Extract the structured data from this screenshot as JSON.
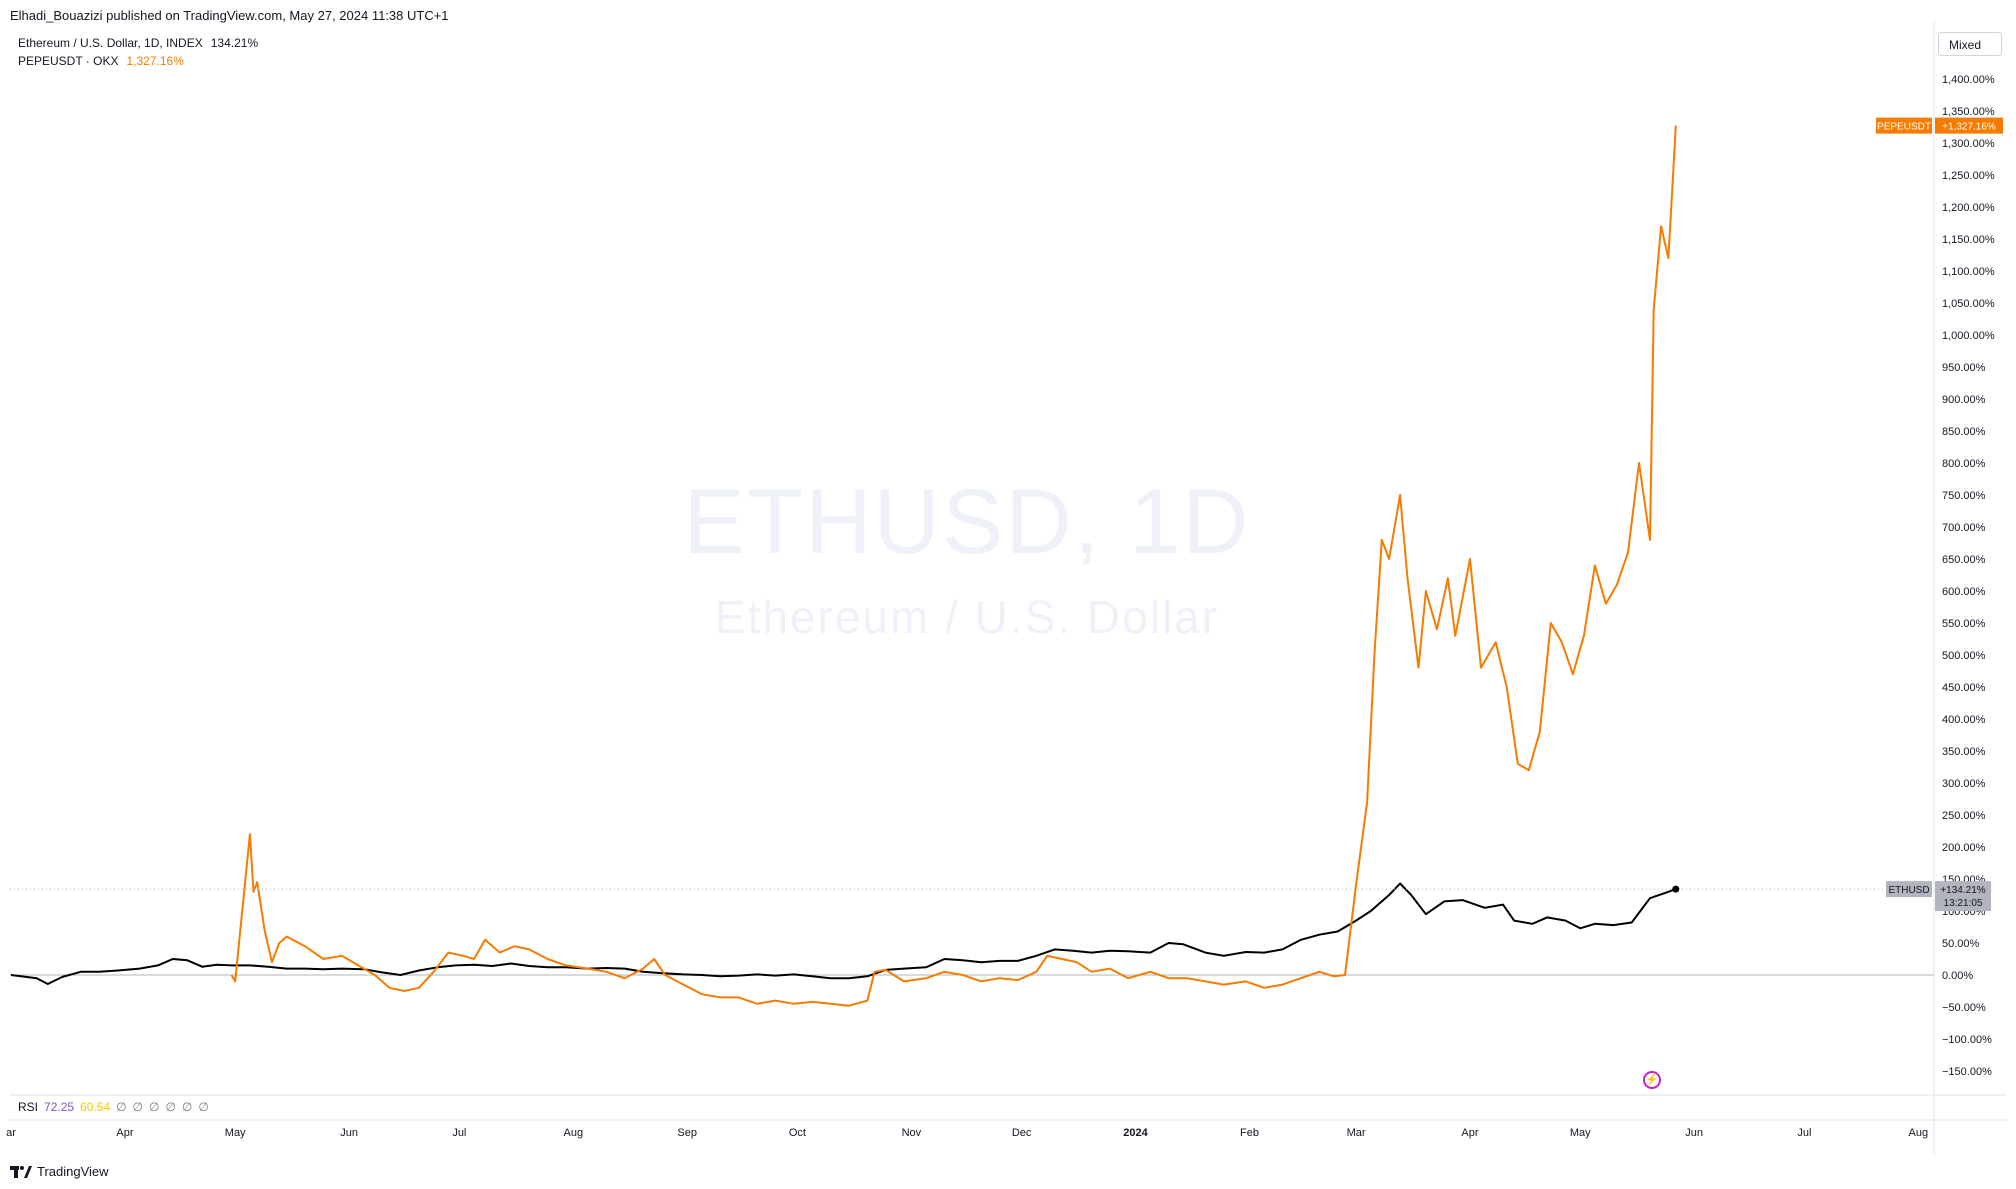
{
  "header": {
    "published": "Elhadi_Bouazizi published on TradingView.com, May 27, 2024 11:38 UTC+1"
  },
  "legend": {
    "eth_name": "Ethereum / U.S. Dollar, 1D, INDEX",
    "eth_value": "134.21%",
    "pepe_name": "PEPEUSDT · OKX",
    "pepe_value": "1,327.16%"
  },
  "scale_mode": "Mixed",
  "watermark": {
    "symbol": "ETHUSD, 1D",
    "name": "Ethereum / U.S. Dollar"
  },
  "rsi": {
    "label": "RSI",
    "value1": "72.25",
    "value2": "60.54",
    "empty_symbol": "∅"
  },
  "footer": {
    "brand": "TradingView"
  },
  "colors": {
    "eth": "#000000",
    "pepe": "#f57c00",
    "rsi1": "#7e57c2",
    "rsi2": "#f7c500",
    "axis_text": "#131722",
    "grid": "#e0e3eb"
  },
  "chart_data": {
    "type": "line",
    "y_unit": "%",
    "ylim": [
      -175,
      1425
    ],
    "y_ticks": [
      -150,
      -100,
      -50,
      0,
      50,
      100,
      150,
      200,
      250,
      300,
      350,
      400,
      450,
      500,
      550,
      600,
      650,
      700,
      750,
      800,
      850,
      900,
      950,
      1000,
      1050,
      1100,
      1150,
      1200,
      1250,
      1300,
      1350,
      1400
    ],
    "y_tick_labels": [
      "−150.00%",
      "−100.00%",
      "−50.00%",
      "0.00%",
      "50.00%",
      "100.00%",
      "150.00%",
      "200.00%",
      "250.00%",
      "300.00%",
      "350.00%",
      "400.00%",
      "450.00%",
      "500.00%",
      "550.00%",
      "600.00%",
      "650.00%",
      "700.00%",
      "750.00%",
      "800.00%",
      "850.00%",
      "900.00%",
      "950.00%",
      "1,000.00%",
      "1,050.00%",
      "1,100.00%",
      "1,150.00%",
      "1,200.00%",
      "1,250.00%",
      "1,300.00%",
      "1,350.00%",
      "1,400.00%"
    ],
    "x_range": [
      "2023-03-01",
      "2024-08-31"
    ],
    "x_ticks": [
      {
        "label": "ar",
        "date": "2023-03-01"
      },
      {
        "label": "Apr",
        "date": "2023-04-01"
      },
      {
        "label": "May",
        "date": "2023-05-01"
      },
      {
        "label": "Jun",
        "date": "2023-06-01"
      },
      {
        "label": "Jul",
        "date": "2023-07-01"
      },
      {
        "label": "Aug",
        "date": "2023-08-01"
      },
      {
        "label": "Sep",
        "date": "2023-09-01"
      },
      {
        "label": "Oct",
        "date": "2023-10-01"
      },
      {
        "label": "Nov",
        "date": "2023-11-01"
      },
      {
        "label": "Dec",
        "date": "2023-12-01"
      },
      {
        "label": "2024",
        "date": "2024-01-01",
        "bold": true
      },
      {
        "label": "Feb",
        "date": "2024-02-01"
      },
      {
        "label": "Mar",
        "date": "2024-03-01"
      },
      {
        "label": "Apr",
        "date": "2024-04-01"
      },
      {
        "label": "May",
        "date": "2024-05-01"
      },
      {
        "label": "Jun",
        "date": "2024-06-01"
      },
      {
        "label": "Jul",
        "date": "2024-07-01"
      },
      {
        "label": "Aug",
        "date": "2024-08-01"
      }
    ],
    "series": [
      {
        "name": "ETHUSD",
        "color": "#000000",
        "last_label": "+134.21%",
        "countdown": "13:21:05",
        "points": [
          [
            "2023-03-01",
            0
          ],
          [
            "2023-03-08",
            -5
          ],
          [
            "2023-03-11",
            -14
          ],
          [
            "2023-03-15",
            -3
          ],
          [
            "2023-03-20",
            5
          ],
          [
            "2023-03-25",
            5
          ],
          [
            "2023-03-30",
            7
          ],
          [
            "2023-04-05",
            10
          ],
          [
            "2023-04-10",
            15
          ],
          [
            "2023-04-14",
            25
          ],
          [
            "2023-04-18",
            23
          ],
          [
            "2023-04-22",
            13
          ],
          [
            "2023-04-26",
            16
          ],
          [
            "2023-04-30",
            15
          ],
          [
            "2023-05-05",
            15
          ],
          [
            "2023-05-10",
            13
          ],
          [
            "2023-05-15",
            10
          ],
          [
            "2023-05-20",
            10
          ],
          [
            "2023-05-25",
            9
          ],
          [
            "2023-05-30",
            10
          ],
          [
            "2023-06-05",
            9
          ],
          [
            "2023-06-10",
            4
          ],
          [
            "2023-06-15",
            0
          ],
          [
            "2023-06-20",
            7
          ],
          [
            "2023-06-25",
            12
          ],
          [
            "2023-06-30",
            15
          ],
          [
            "2023-07-05",
            16
          ],
          [
            "2023-07-10",
            14
          ],
          [
            "2023-07-15",
            18
          ],
          [
            "2023-07-20",
            14
          ],
          [
            "2023-07-25",
            12
          ],
          [
            "2023-07-30",
            12
          ],
          [
            "2023-08-05",
            10
          ],
          [
            "2023-08-10",
            11
          ],
          [
            "2023-08-15",
            10
          ],
          [
            "2023-08-20",
            5
          ],
          [
            "2023-08-25",
            3
          ],
          [
            "2023-08-31",
            1
          ],
          [
            "2023-09-05",
            0
          ],
          [
            "2023-09-10",
            -2
          ],
          [
            "2023-09-15",
            -1
          ],
          [
            "2023-09-20",
            1
          ],
          [
            "2023-09-25",
            -1
          ],
          [
            "2023-09-30",
            1
          ],
          [
            "2023-10-05",
            -2
          ],
          [
            "2023-10-10",
            -5
          ],
          [
            "2023-10-15",
            -5
          ],
          [
            "2023-10-20",
            -2
          ],
          [
            "2023-10-25",
            8
          ],
          [
            "2023-10-30",
            10
          ],
          [
            "2023-11-05",
            12
          ],
          [
            "2023-11-10",
            25
          ],
          [
            "2023-11-15",
            23
          ],
          [
            "2023-11-20",
            20
          ],
          [
            "2023-11-25",
            22
          ],
          [
            "2023-11-30",
            22
          ],
          [
            "2023-12-05",
            30
          ],
          [
            "2023-12-10",
            40
          ],
          [
            "2023-12-15",
            38
          ],
          [
            "2023-12-20",
            35
          ],
          [
            "2023-12-25",
            38
          ],
          [
            "2023-12-30",
            37
          ],
          [
            "2024-01-05",
            35
          ],
          [
            "2024-01-10",
            50
          ],
          [
            "2024-01-14",
            48
          ],
          [
            "2024-01-20",
            35
          ],
          [
            "2024-01-25",
            30
          ],
          [
            "2024-01-31",
            36
          ],
          [
            "2024-02-05",
            35
          ],
          [
            "2024-02-10",
            40
          ],
          [
            "2024-02-15",
            55
          ],
          [
            "2024-02-20",
            63
          ],
          [
            "2024-02-25",
            68
          ],
          [
            "2024-03-01",
            85
          ],
          [
            "2024-03-05",
            100
          ],
          [
            "2024-03-10",
            125
          ],
          [
            "2024-03-13",
            143
          ],
          [
            "2024-03-16",
            125
          ],
          [
            "2024-03-20",
            95
          ],
          [
            "2024-03-25",
            115
          ],
          [
            "2024-03-30",
            117
          ],
          [
            "2024-04-05",
            105
          ],
          [
            "2024-04-10",
            110
          ],
          [
            "2024-04-13",
            85
          ],
          [
            "2024-04-18",
            80
          ],
          [
            "2024-04-22",
            90
          ],
          [
            "2024-04-27",
            85
          ],
          [
            "2024-05-01",
            73
          ],
          [
            "2024-05-05",
            80
          ],
          [
            "2024-05-10",
            78
          ],
          [
            "2024-05-15",
            82
          ],
          [
            "2024-05-20",
            120
          ],
          [
            "2024-05-25",
            130
          ],
          [
            "2024-05-27",
            134.21
          ]
        ]
      },
      {
        "name": "PEPEUSDT",
        "color": "#f57c00",
        "last_label": "+1,327.16%",
        "points": [
          [
            "2023-04-30",
            0
          ],
          [
            "2023-05-01",
            -10
          ],
          [
            "2023-05-05",
            220
          ],
          [
            "2023-05-06",
            130
          ],
          [
            "2023-05-07",
            145
          ],
          [
            "2023-05-09",
            70
          ],
          [
            "2023-05-11",
            20
          ],
          [
            "2023-05-13",
            50
          ],
          [
            "2023-05-15",
            60
          ],
          [
            "2023-05-20",
            45
          ],
          [
            "2023-05-25",
            25
          ],
          [
            "2023-05-30",
            30
          ],
          [
            "2023-06-05",
            10
          ],
          [
            "2023-06-08",
            0
          ],
          [
            "2023-06-12",
            -20
          ],
          [
            "2023-06-16",
            -25
          ],
          [
            "2023-06-20",
            -20
          ],
          [
            "2023-06-24",
            5
          ],
          [
            "2023-06-28",
            35
          ],
          [
            "2023-07-02",
            30
          ],
          [
            "2023-07-05",
            25
          ],
          [
            "2023-07-08",
            55
          ],
          [
            "2023-07-12",
            35
          ],
          [
            "2023-07-16",
            45
          ],
          [
            "2023-07-20",
            40
          ],
          [
            "2023-07-25",
            25
          ],
          [
            "2023-07-30",
            15
          ],
          [
            "2023-08-05",
            10
          ],
          [
            "2023-08-10",
            5
          ],
          [
            "2023-08-15",
            -5
          ],
          [
            "2023-08-20",
            10
          ],
          [
            "2023-08-23",
            25
          ],
          [
            "2023-08-26",
            0
          ],
          [
            "2023-08-31",
            -15
          ],
          [
            "2023-09-05",
            -30
          ],
          [
            "2023-09-10",
            -35
          ],
          [
            "2023-09-15",
            -35
          ],
          [
            "2023-09-20",
            -45
          ],
          [
            "2023-09-25",
            -40
          ],
          [
            "2023-09-30",
            -45
          ],
          [
            "2023-10-05",
            -42
          ],
          [
            "2023-10-10",
            -45
          ],
          [
            "2023-10-15",
            -48
          ],
          [
            "2023-10-20",
            -40
          ],
          [
            "2023-10-22",
            5
          ],
          [
            "2023-10-25",
            8
          ],
          [
            "2023-10-30",
            -10
          ],
          [
            "2023-11-05",
            -5
          ],
          [
            "2023-11-10",
            5
          ],
          [
            "2023-11-15",
            0
          ],
          [
            "2023-11-20",
            -10
          ],
          [
            "2023-11-25",
            -5
          ],
          [
            "2023-11-30",
            -8
          ],
          [
            "2023-12-05",
            5
          ],
          [
            "2023-12-08",
            30
          ],
          [
            "2023-12-12",
            25
          ],
          [
            "2023-12-16",
            20
          ],
          [
            "2023-12-20",
            5
          ],
          [
            "2023-12-25",
            10
          ],
          [
            "2023-12-30",
            -5
          ],
          [
            "2024-01-05",
            5
          ],
          [
            "2024-01-10",
            -5
          ],
          [
            "2024-01-15",
            -5
          ],
          [
            "2024-01-20",
            -10
          ],
          [
            "2024-01-25",
            -15
          ],
          [
            "2024-01-31",
            -10
          ],
          [
            "2024-02-05",
            -20
          ],
          [
            "2024-02-10",
            -15
          ],
          [
            "2024-02-15",
            -5
          ],
          [
            "2024-02-20",
            5
          ],
          [
            "2024-02-24",
            -2
          ],
          [
            "2024-02-27",
            0
          ],
          [
            "2024-03-01",
            140
          ],
          [
            "2024-03-04",
            270
          ],
          [
            "2024-03-06",
            500
          ],
          [
            "2024-03-08",
            680
          ],
          [
            "2024-03-10",
            650
          ],
          [
            "2024-03-13",
            750
          ],
          [
            "2024-03-15",
            620
          ],
          [
            "2024-03-18",
            480
          ],
          [
            "2024-03-20",
            600
          ],
          [
            "2024-03-23",
            540
          ],
          [
            "2024-03-26",
            620
          ],
          [
            "2024-03-28",
            530
          ],
          [
            "2024-04-01",
            650
          ],
          [
            "2024-04-04",
            480
          ],
          [
            "2024-04-08",
            520
          ],
          [
            "2024-04-11",
            450
          ],
          [
            "2024-04-14",
            330
          ],
          [
            "2024-04-17",
            320
          ],
          [
            "2024-04-20",
            380
          ],
          [
            "2024-04-23",
            550
          ],
          [
            "2024-04-26",
            520
          ],
          [
            "2024-04-29",
            470
          ],
          [
            "2024-05-02",
            530
          ],
          [
            "2024-05-05",
            640
          ],
          [
            "2024-05-08",
            580
          ],
          [
            "2024-05-11",
            610
          ],
          [
            "2024-05-14",
            660
          ],
          [
            "2024-05-17",
            800
          ],
          [
            "2024-05-20",
            680
          ],
          [
            "2024-05-21",
            1040
          ],
          [
            "2024-05-23",
            1170
          ],
          [
            "2024-05-25",
            1120
          ],
          [
            "2024-05-27",
            1327.16
          ]
        ]
      }
    ]
  }
}
